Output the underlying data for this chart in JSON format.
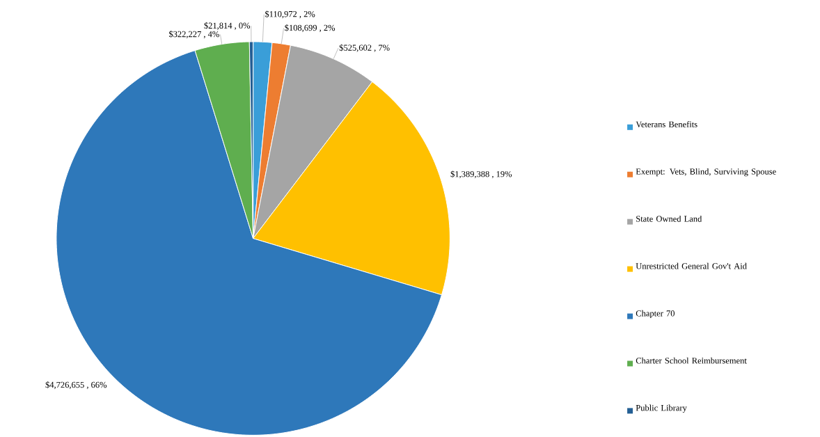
{
  "chart_data": {
    "type": "pie",
    "categories": [
      "Veterans Benefits",
      "Exempt: Vets, Blind, Surviving Spouse",
      "State Owned Land",
      "Unrestricted General Gov't Aid",
      "Chapter 70",
      "Charter School Reimbursement",
      "Public Library"
    ],
    "values": [
      110972,
      108699,
      525602,
      1389388,
      4726655,
      322227,
      21814
    ],
    "value_labels": [
      "$110,972 , 2%",
      "$108,699 , 2%",
      "$525,602 , 7%",
      "$1,389,388 , 19%",
      "$4,726,655 , 66%",
      "$322,227 , 4%",
      "$21,814 , 0%"
    ],
    "colors": [
      "#3a9ed8",
      "#ed7d31",
      "#a5a5a5",
      "#ffc000",
      "#2e78ba",
      "#5fae4f",
      "#245f94"
    ],
    "legend": "right"
  }
}
